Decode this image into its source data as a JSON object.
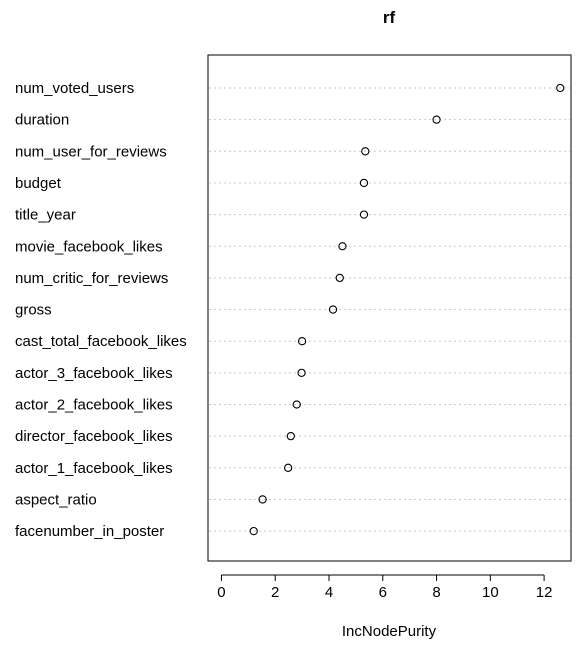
{
  "chart_data": {
    "type": "scatter",
    "title": "rf",
    "xlabel": "IncNodePurity",
    "ylabel": "",
    "xlim": [
      -0.5,
      13.0
    ],
    "xticks": [
      0,
      2,
      4,
      6,
      8,
      10,
      12
    ],
    "categories": [
      "num_voted_users",
      "duration",
      "num_user_for_reviews",
      "budget",
      "title_year",
      "movie_facebook_likes",
      "num_critic_for_reviews",
      "gross",
      "cast_total_facebook_likes",
      "actor_3_facebook_likes",
      "actor_2_facebook_likes",
      "director_facebook_likes",
      "actor_1_facebook_likes",
      "aspect_ratio",
      "facenumber_in_poster"
    ],
    "values": [
      12.6,
      8.0,
      5.35,
      5.3,
      5.3,
      4.5,
      4.4,
      4.15,
      3.0,
      2.98,
      2.8,
      2.58,
      2.48,
      1.53,
      1.2
    ],
    "grid": true,
    "legend": "none"
  }
}
